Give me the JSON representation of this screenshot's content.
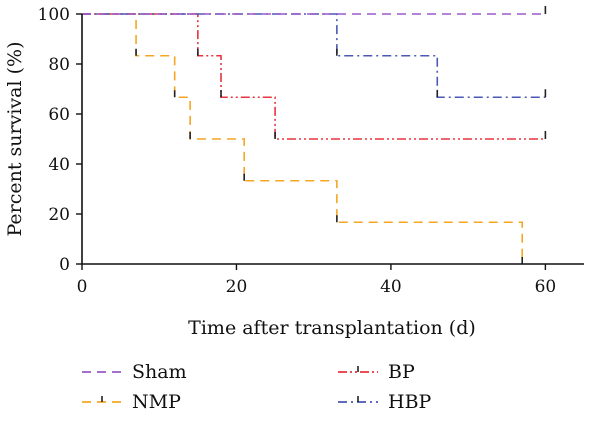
{
  "chart_data": {
    "type": "line",
    "title": "",
    "xlabel": "Time after transplantation (d)",
    "ylabel": "Percent survival (%)",
    "xlim": [
      0,
      65
    ],
    "ylim": [
      0,
      100
    ],
    "x_ticks": [
      0,
      20,
      40,
      60
    ],
    "y_ticks": [
      0,
      20,
      40,
      60,
      80,
      100
    ],
    "grid": false,
    "legend_position": "bottom",
    "step_plot": true,
    "series": [
      {
        "name": "Sham",
        "color": "#9b59c9",
        "dash": "dashed",
        "x": [
          0,
          60
        ],
        "y": [
          100,
          100
        ],
        "censored": [
          60
        ]
      },
      {
        "name": "NMP",
        "color": "#f5a623",
        "dash": "dashed",
        "x": [
          0,
          7,
          12,
          14,
          21,
          33,
          57
        ],
        "y": [
          100,
          83.3,
          66.7,
          50,
          33.3,
          16.7,
          0
        ],
        "censored": []
      },
      {
        "name": "BP",
        "color": "#e8343f",
        "dash": "dash-dot-dot",
        "x": [
          0,
          15,
          18,
          25,
          60
        ],
        "y": [
          100,
          83.3,
          66.7,
          50,
          50
        ],
        "censored": [
          60
        ]
      },
      {
        "name": "HBP",
        "color": "#4a58b8",
        "dash": "dash-dot",
        "x": [
          0,
          33,
          46,
          60
        ],
        "y": [
          100,
          83.3,
          66.7,
          66.7
        ],
        "censored": [
          60
        ]
      }
    ]
  }
}
